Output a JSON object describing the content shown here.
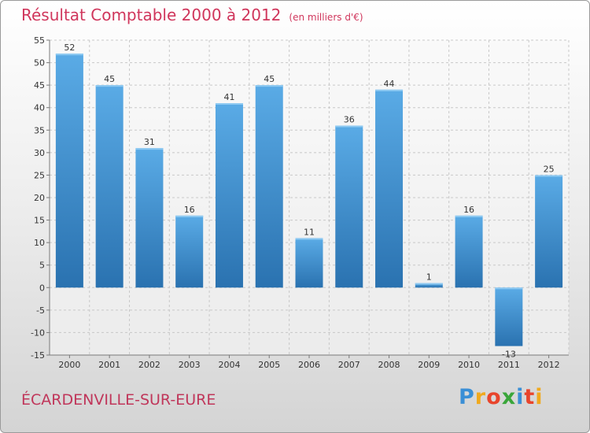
{
  "header": {
    "title": "Résultat Comptable 2000 à 2012",
    "subtitle": "(en milliers d'€)"
  },
  "footer": {
    "commune": "ÉCARDENVILLE-SUR-EURE",
    "logo_letters": [
      "P",
      "r",
      "o",
      "x",
      "i",
      "t",
      "i"
    ],
    "logo_colors": [
      "#3a8fd6",
      "#f0a91e",
      "#e8452c",
      "#3aa63a",
      "#3a8fd6",
      "#e8452c",
      "#f0a91e"
    ]
  },
  "chart_data": {
    "type": "bar",
    "title": "Résultat Comptable 2000 à 2012",
    "subtitle": "(en milliers d'€)",
    "xlabel": "",
    "ylabel": "",
    "categories": [
      "2000",
      "2001",
      "2002",
      "2003",
      "2004",
      "2005",
      "2006",
      "2007",
      "2008",
      "2009",
      "2010",
      "2011",
      "2012"
    ],
    "values": [
      52,
      45,
      31,
      16,
      41,
      45,
      11,
      36,
      44,
      1,
      16,
      -13,
      25
    ],
    "ylim": [
      -15,
      55
    ],
    "yticks": [
      -15,
      -10,
      -5,
      0,
      5,
      10,
      15,
      20,
      25,
      30,
      35,
      40,
      45,
      50,
      55
    ],
    "grid": true,
    "colors": {
      "bar_top": "#5aabe6",
      "bar_bottom": "#2a72b0",
      "grid": "#c8c8c8",
      "axis": "#7a7a7a"
    }
  }
}
